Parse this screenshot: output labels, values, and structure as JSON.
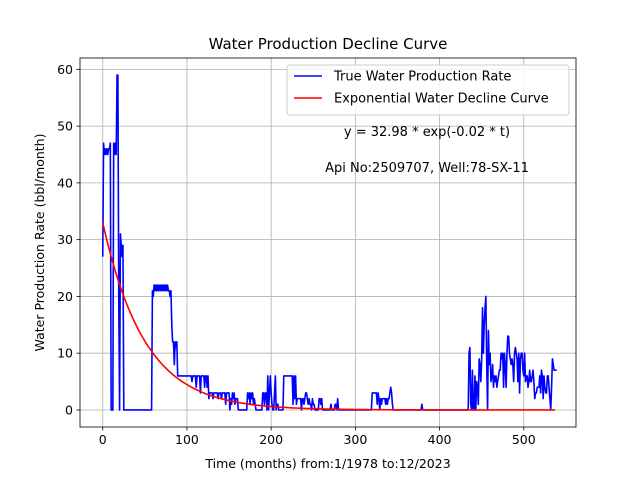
{
  "chart_data": {
    "type": "line",
    "title": "Water Production Decline Curve",
    "xlabel": "Time (months) from:1/1978 to:12/2023",
    "ylabel": "Water Production Rate (bbl/month)",
    "xlim": [
      -27,
      562
    ],
    "ylim": [
      -3,
      62
    ],
    "xticks": [
      0,
      100,
      200,
      300,
      400,
      500
    ],
    "yticks": [
      0,
      10,
      20,
      30,
      40,
      50,
      60
    ],
    "grid": true,
    "legend_position": "top-right",
    "annotations": [
      "y = 32.98 * exp(-0.02 * t)",
      "Api No:2509707, Well:78-SX-11"
    ],
    "series": [
      {
        "name": "True Water Production Rate",
        "color": "#0000ff",
        "points": [
          [
            0,
            27
          ],
          [
            1,
            47
          ],
          [
            2,
            45
          ],
          [
            3,
            46
          ],
          [
            4,
            45
          ],
          [
            5,
            46
          ],
          [
            6,
            45
          ],
          [
            7,
            46
          ],
          [
            8,
            46
          ],
          [
            9,
            47
          ],
          [
            10,
            0
          ],
          [
            11,
            0
          ],
          [
            12,
            0
          ],
          [
            13,
            47
          ],
          [
            14,
            45
          ],
          [
            15,
            47
          ],
          [
            16,
            45
          ],
          [
            17,
            59
          ],
          [
            18,
            59
          ],
          [
            19,
            20
          ],
          [
            20,
            0
          ],
          [
            21,
            31
          ],
          [
            22,
            29
          ],
          [
            23,
            27
          ],
          [
            24,
            29
          ],
          [
            25,
            0
          ],
          [
            30,
            0
          ],
          [
            40,
            0
          ],
          [
            50,
            0
          ],
          [
            58,
            0
          ],
          [
            59,
            21
          ],
          [
            60,
            20
          ],
          [
            61,
            22
          ],
          [
            62,
            21
          ],
          [
            63,
            22
          ],
          [
            64,
            21
          ],
          [
            65,
            22
          ],
          [
            66,
            21
          ],
          [
            67,
            22
          ],
          [
            68,
            21
          ],
          [
            69,
            22
          ],
          [
            70,
            21
          ],
          [
            71,
            22
          ],
          [
            72,
            21
          ],
          [
            73,
            22
          ],
          [
            74,
            21
          ],
          [
            75,
            22
          ],
          [
            76,
            21
          ],
          [
            77,
            22
          ],
          [
            78,
            21
          ],
          [
            79,
            21
          ],
          [
            80,
            20
          ],
          [
            81,
            21
          ],
          [
            82,
            15
          ],
          [
            83,
            12
          ],
          [
            84,
            12
          ],
          [
            85,
            8
          ],
          [
            86,
            12
          ],
          [
            87,
            11
          ],
          [
            88,
            12
          ],
          [
            89,
            6
          ],
          [
            95,
            6
          ],
          [
            100,
            6
          ],
          [
            105,
            6
          ],
          [
            106,
            5
          ],
          [
            107,
            6
          ],
          [
            110,
            6
          ],
          [
            111,
            4
          ],
          [
            112,
            6
          ],
          [
            115,
            6
          ],
          [
            116,
            3
          ],
          [
            117,
            6
          ],
          [
            120,
            6
          ],
          [
            121,
            4
          ],
          [
            122,
            6
          ],
          [
            123,
            6
          ],
          [
            124,
            4
          ],
          [
            125,
            6
          ],
          [
            126,
            2
          ],
          [
            127,
            3
          ],
          [
            130,
            3
          ],
          [
            131,
            2
          ],
          [
            132,
            3
          ],
          [
            136,
            3
          ],
          [
            137,
            2
          ],
          [
            138,
            3
          ],
          [
            140,
            3
          ],
          [
            141,
            2
          ],
          [
            142,
            3
          ],
          [
            145,
            3
          ],
          [
            146,
            1
          ],
          [
            147,
            3
          ],
          [
            150,
            3
          ],
          [
            151,
            0
          ],
          [
            152,
            2
          ],
          [
            153,
            1
          ],
          [
            154,
            3
          ],
          [
            155,
            2
          ],
          [
            156,
            3
          ],
          [
            157,
            1
          ],
          [
            158,
            2
          ],
          [
            160,
            2
          ],
          [
            161,
            0
          ],
          [
            170,
            0
          ],
          [
            171,
            0
          ],
          [
            172,
            3
          ],
          [
            173,
            2
          ],
          [
            174,
            3
          ],
          [
            175,
            1
          ],
          [
            176,
            3
          ],
          [
            177,
            2
          ],
          [
            178,
            3
          ],
          [
            179,
            1
          ],
          [
            180,
            2
          ],
          [
            181,
            1
          ],
          [
            182,
            0
          ],
          [
            189,
            0
          ],
          [
            190,
            3
          ],
          [
            191,
            3
          ],
          [
            192,
            1
          ],
          [
            193,
            3
          ],
          [
            194,
            3
          ],
          [
            195,
            0
          ],
          [
            196,
            6
          ],
          [
            197,
            0
          ],
          [
            198,
            3
          ],
          [
            199,
            6
          ],
          [
            200,
            3
          ],
          [
            201,
            1
          ],
          [
            202,
            0
          ],
          [
            203,
            0
          ],
          [
            204,
            3
          ],
          [
            205,
            6
          ],
          [
            206,
            0
          ],
          [
            207,
            1
          ],
          [
            208,
            1
          ],
          [
            209,
            0
          ],
          [
            210,
            0
          ],
          [
            214,
            0
          ],
          [
            215,
            6
          ],
          [
            225,
            6
          ],
          [
            226,
            1
          ],
          [
            227,
            6
          ],
          [
            228,
            2
          ],
          [
            229,
            6
          ],
          [
            230,
            1
          ],
          [
            231,
            2
          ],
          [
            235,
            2
          ],
          [
            236,
            0
          ],
          [
            237,
            2
          ],
          [
            238,
            2
          ],
          [
            239,
            1
          ],
          [
            240,
            2
          ],
          [
            241,
            3
          ],
          [
            242,
            3
          ],
          [
            243,
            2
          ],
          [
            244,
            1
          ],
          [
            245,
            2
          ],
          [
            246,
            1
          ],
          [
            247,
            1
          ],
          [
            248,
            0
          ],
          [
            249,
            2
          ],
          [
            250,
            1
          ],
          [
            251,
            1
          ],
          [
            252,
            0
          ],
          [
            256,
            0
          ],
          [
            257,
            2
          ],
          [
            258,
            2
          ],
          [
            259,
            1
          ],
          [
            260,
            2
          ],
          [
            261,
            0
          ],
          [
            270,
            0
          ],
          [
            271,
            1
          ],
          [
            272,
            0
          ],
          [
            275,
            0
          ],
          [
            276,
            1
          ],
          [
            277,
            1
          ],
          [
            278,
            0
          ],
          [
            279,
            2
          ],
          [
            280,
            0
          ],
          [
            290,
            0
          ],
          [
            300,
            0
          ],
          [
            310,
            0
          ],
          [
            319,
            0
          ],
          [
            320,
            3
          ],
          [
            325,
            3
          ],
          [
            326,
            1
          ],
          [
            327,
            3
          ],
          [
            328,
            2
          ],
          [
            329,
            0
          ],
          [
            330,
            2
          ],
          [
            331,
            1
          ],
          [
            332,
            2
          ],
          [
            335,
            2
          ],
          [
            336,
            1
          ],
          [
            337,
            2
          ],
          [
            338,
            1
          ],
          [
            339,
            2
          ],
          [
            340,
            2
          ],
          [
            341,
            3
          ],
          [
            342,
            4
          ],
          [
            343,
            3
          ],
          [
            344,
            1
          ],
          [
            345,
            0
          ],
          [
            350,
            0
          ],
          [
            360,
            0
          ],
          [
            370,
            0
          ],
          [
            378,
            0
          ],
          [
            379,
            1
          ],
          [
            380,
            0
          ],
          [
            390,
            0
          ],
          [
            400,
            0
          ],
          [
            410,
            0
          ],
          [
            420,
            0
          ],
          [
            430,
            0
          ],
          [
            434,
            0
          ],
          [
            435,
            10
          ],
          [
            436,
            11
          ],
          [
            437,
            1
          ],
          [
            438,
            0
          ],
          [
            439,
            7
          ],
          [
            440,
            0
          ],
          [
            441,
            0
          ],
          [
            442,
            6
          ],
          [
            443,
            0
          ],
          [
            444,
            5
          ],
          [
            445,
            4
          ],
          [
            446,
            1
          ],
          [
            447,
            9
          ],
          [
            448,
            8
          ],
          [
            449,
            5
          ],
          [
            450,
            9
          ],
          [
            451,
            18
          ],
          [
            452,
            10
          ],
          [
            453,
            15
          ],
          [
            454,
            18
          ],
          [
            455,
            20
          ],
          [
            456,
            8
          ],
          [
            457,
            0
          ],
          [
            458,
            14
          ],
          [
            459,
            8
          ],
          [
            460,
            10
          ],
          [
            461,
            5
          ],
          [
            462,
            6
          ],
          [
            463,
            8
          ],
          [
            464,
            4
          ],
          [
            465,
            6
          ],
          [
            466,
            5
          ],
          [
            467,
            6
          ],
          [
            468,
            4
          ],
          [
            469,
            5
          ],
          [
            470,
            6
          ],
          [
            471,
            7
          ],
          [
            472,
            7
          ],
          [
            473,
            10
          ],
          [
            474,
            9
          ],
          [
            475,
            10
          ],
          [
            476,
            4
          ],
          [
            477,
            10
          ],
          [
            478,
            8
          ],
          [
            479,
            4
          ],
          [
            480,
            10
          ],
          [
            481,
            13
          ],
          [
            482,
            13
          ],
          [
            483,
            10
          ],
          [
            484,
            9
          ],
          [
            485,
            8
          ],
          [
            486,
            9
          ],
          [
            487,
            8
          ],
          [
            488,
            5
          ],
          [
            489,
            10
          ],
          [
            490,
            11
          ],
          [
            491,
            10
          ],
          [
            492,
            9
          ],
          [
            493,
            5
          ],
          [
            494,
            10
          ],
          [
            495,
            3
          ],
          [
            496,
            9
          ],
          [
            497,
            10
          ],
          [
            498,
            10
          ],
          [
            499,
            7
          ],
          [
            500,
            6
          ],
          [
            501,
            10
          ],
          [
            502,
            5
          ],
          [
            503,
            6
          ],
          [
            504,
            6
          ],
          [
            505,
            4
          ],
          [
            506,
            5
          ],
          [
            507,
            7
          ],
          [
            508,
            5
          ],
          [
            509,
            5
          ],
          [
            510,
            6
          ],
          [
            511,
            7
          ],
          [
            512,
            5
          ],
          [
            513,
            2
          ],
          [
            514,
            3
          ],
          [
            515,
            3
          ],
          [
            516,
            4
          ],
          [
            517,
            4
          ],
          [
            518,
            4
          ],
          [
            519,
            6
          ],
          [
            520,
            3
          ],
          [
            521,
            7
          ],
          [
            522,
            6
          ],
          [
            523,
            2
          ],
          [
            524,
            6
          ],
          [
            525,
            4
          ],
          [
            526,
            3
          ],
          [
            527,
            3
          ],
          [
            528,
            6
          ],
          [
            529,
            6
          ],
          [
            530,
            4
          ],
          [
            531,
            2
          ],
          [
            532,
            0
          ],
          [
            533,
            4
          ],
          [
            534,
            9
          ],
          [
            535,
            8
          ],
          [
            536,
            7
          ],
          [
            537,
            7
          ],
          [
            538,
            7
          ],
          [
            539,
            7
          ]
        ]
      },
      {
        "name": "Exponential Water Decline Curve",
        "color": "#ff0000",
        "function": {
          "a": 32.98,
          "b": -0.02
        },
        "x_range": [
          0,
          539
        ]
      }
    ]
  }
}
